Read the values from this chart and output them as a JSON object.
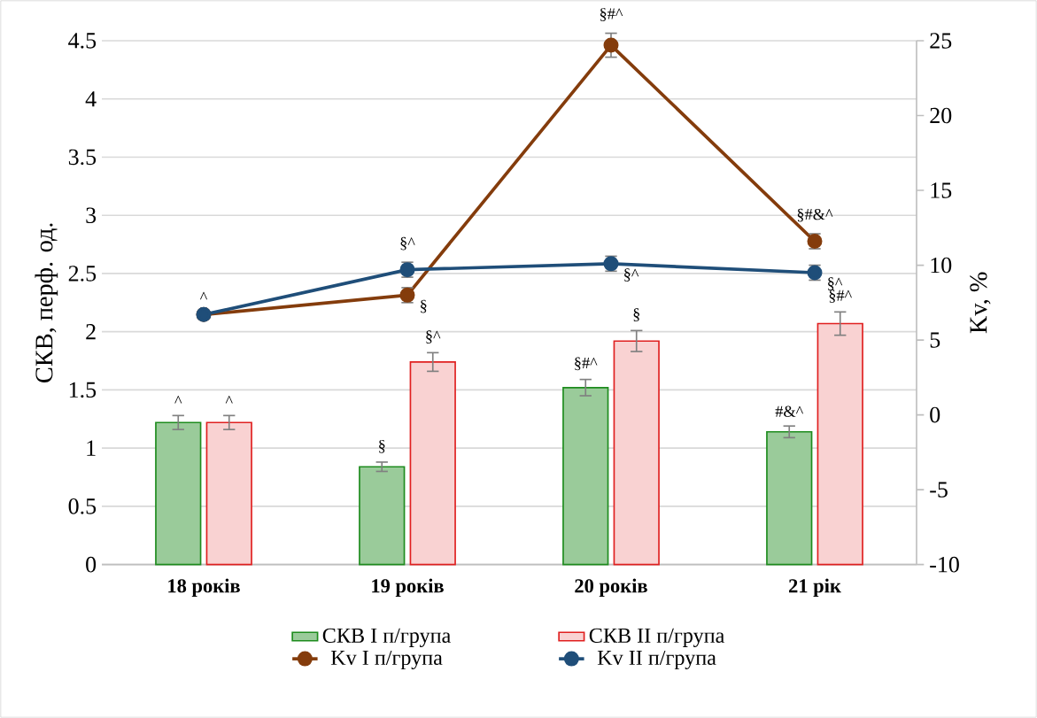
{
  "chart_data": {
    "type": "bar",
    "ylabel": "СКВ, перф. од.",
    "y2label": "Kv, %",
    "categories": [
      "18 років",
      "19 років",
      "20 років",
      "21 рік"
    ],
    "series": [
      {
        "name": "СКВ І п/група",
        "color": "#1e8c1e",
        "values": [
          1.22,
          0.84,
          1.52,
          1.14
        ],
        "errors": [
          0.06,
          0.04,
          0.07,
          0.05
        ]
      },
      {
        "name": "СКВ ІІ п/група",
        "color": "#e02020",
        "values": [
          1.22,
          1.74,
          1.92,
          2.07
        ],
        "errors": [
          0.06,
          0.08,
          0.09,
          0.1
        ]
      },
      {
        "name": "Kv I п/група",
        "type": "line",
        "axis": "y2",
        "color": "#843c0c",
        "marker": "circle",
        "values": [
          6.7,
          8.0,
          24.7,
          11.6
        ],
        "errors": [
          null,
          0.5,
          0.8,
          0.5
        ]
      },
      {
        "name": "Kv II п/група",
        "type": "line",
        "axis": "y2",
        "color": "#1f4e79",
        "marker": "circle",
        "values": [
          6.7,
          9.7,
          10.1,
          9.5
        ],
        "errors": [
          null,
          0.5,
          0.5,
          0.5
        ]
      }
    ],
    "ylim": [
      0,
      4.5
    ],
    "yticks": [
      0,
      0.5,
      1,
      1.5,
      2,
      2.5,
      3,
      3.5,
      4,
      4.5
    ],
    "y2lim": [
      -10,
      25
    ],
    "y2ticks": [
      -10,
      -5,
      0,
      5,
      10,
      15,
      20,
      25
    ],
    "grid": "y",
    "legend": "bottom",
    "annotations": [
      "^",
      "^",
      "§",
      "§^",
      "§#^",
      "§",
      "#&^",
      "§#^",
      "^",
      "§",
      "§^",
      "§#^",
      "§^",
      "§#&^",
      "§^"
    ]
  }
}
